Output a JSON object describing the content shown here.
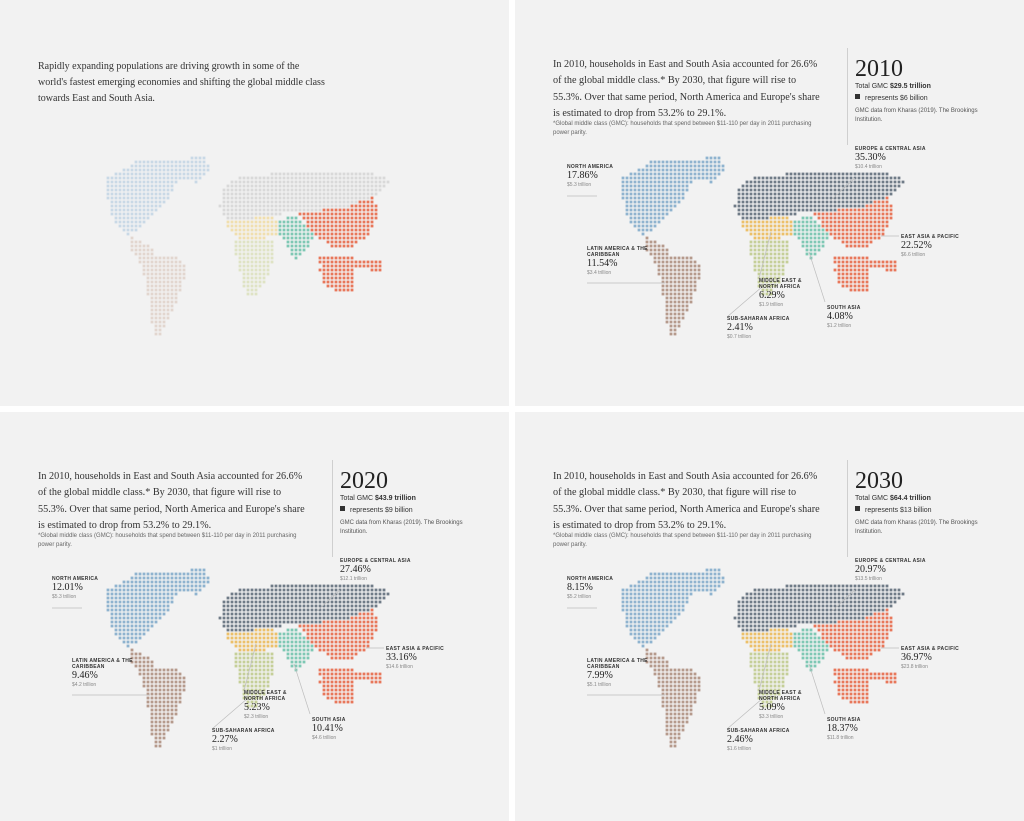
{
  "intro_text": "Rapidly expanding populations are driving growth in some of the world's fastest emerging economies and shifting the global middle class towards East and South Asia.",
  "paragraph": "In 2010, households in East and South Asia accounted for 26.6% of the global middle class.* By 2030, that figure will rise to 55.3%. Over that same period, North America and Europe's share is estimated to drop from 53.2% to 29.1%.",
  "footnote": "*Global middle class (GMC): households that spend between $11-110 per day in 2011 purchasing power parity.",
  "source": "GMC data from Kharas (2019). The Brookings Institution.",
  "total_prefix": "Total GMC ",
  "colors": {
    "north_america": "#8fb3cf",
    "latin_america": "#b59a8c",
    "europe_central_asia": "#6f7b87",
    "east_asia_pacific": "#e8775a",
    "south_asia": "#7ec8b4",
    "mena": "#ecc069",
    "sub_saharan_africa": "#c5cf98"
  },
  "panels": [
    {
      "year": "2010",
      "total": "$29.5 trillion",
      "legend": "represents $6 billion",
      "regions": {
        "north_america": {
          "name": "North America",
          "pct": "17.86%",
          "value": "$5.3 trillion"
        },
        "latin_america": {
          "name": "Latin America & the Caribbean",
          "pct": "11.54%",
          "value": "$3.4 trillion"
        },
        "europe_central_asia": {
          "name": "Europe & Central Asia",
          "pct": "35.30%",
          "value": "$10.4 trillion"
        },
        "east_asia_pacific": {
          "name": "East Asia & Pacific",
          "pct": "22.52%",
          "value": "$6.6 trillion"
        },
        "mena": {
          "name": "Middle East & North Africa",
          "pct": "6.29%",
          "value": "$1.9 trillion"
        },
        "south_asia": {
          "name": "South Asia",
          "pct": "4.08%",
          "value": "$1.2 trillion"
        },
        "sub_saharan_africa": {
          "name": "Sub-Saharan Africa",
          "pct": "2.41%",
          "value": "$0.7 trillion"
        }
      }
    },
    {
      "year": "2020",
      "total": "$43.9 trillion",
      "legend": "represents $9 billion",
      "regions": {
        "north_america": {
          "name": "North America",
          "pct": "12.01%",
          "value": "$5.3 trillion"
        },
        "latin_america": {
          "name": "Latin America & the Caribbean",
          "pct": "9.46%",
          "value": "$4.2 trillion"
        },
        "europe_central_asia": {
          "name": "Europe & Central Asia",
          "pct": "27.46%",
          "value": "$12.1 trillion"
        },
        "east_asia_pacific": {
          "name": "East Asia & Pacific",
          "pct": "33.16%",
          "value": "$14.6 trillion"
        },
        "mena": {
          "name": "Middle East & North Africa",
          "pct": "5.23%",
          "value": "$2.3 trillion"
        },
        "south_asia": {
          "name": "South Asia",
          "pct": "10.41%",
          "value": "$4.6 trillion"
        },
        "sub_saharan_africa": {
          "name": "Sub-Saharan Africa",
          "pct": "2.27%",
          "value": "$1 trillion"
        }
      }
    },
    {
      "year": "2030",
      "total": "$64.4 trillion",
      "legend": "represents $13 billion",
      "regions": {
        "north_america": {
          "name": "North America",
          "pct": "8.15%",
          "value": "$5.2 trillion"
        },
        "latin_america": {
          "name": "Latin America & the Caribbean",
          "pct": "7.99%",
          "value": "$5.1 trillion"
        },
        "europe_central_asia": {
          "name": "Europe & Central Asia",
          "pct": "20.97%",
          "value": "$13.5 trillion"
        },
        "east_asia_pacific": {
          "name": "East Asia & Pacific",
          "pct": "36.97%",
          "value": "$23.8 trillion"
        },
        "mena": {
          "name": "Middle East & North Africa",
          "pct": "5.09%",
          "value": "$3.3 trillion"
        },
        "south_asia": {
          "name": "South Asia",
          "pct": "18.37%",
          "value": "$11.8 trillion"
        },
        "sub_saharan_africa": {
          "name": "Sub-Saharan Africa",
          "pct": "2.46%",
          "value": "$1.6 trillion"
        }
      }
    }
  ]
}
